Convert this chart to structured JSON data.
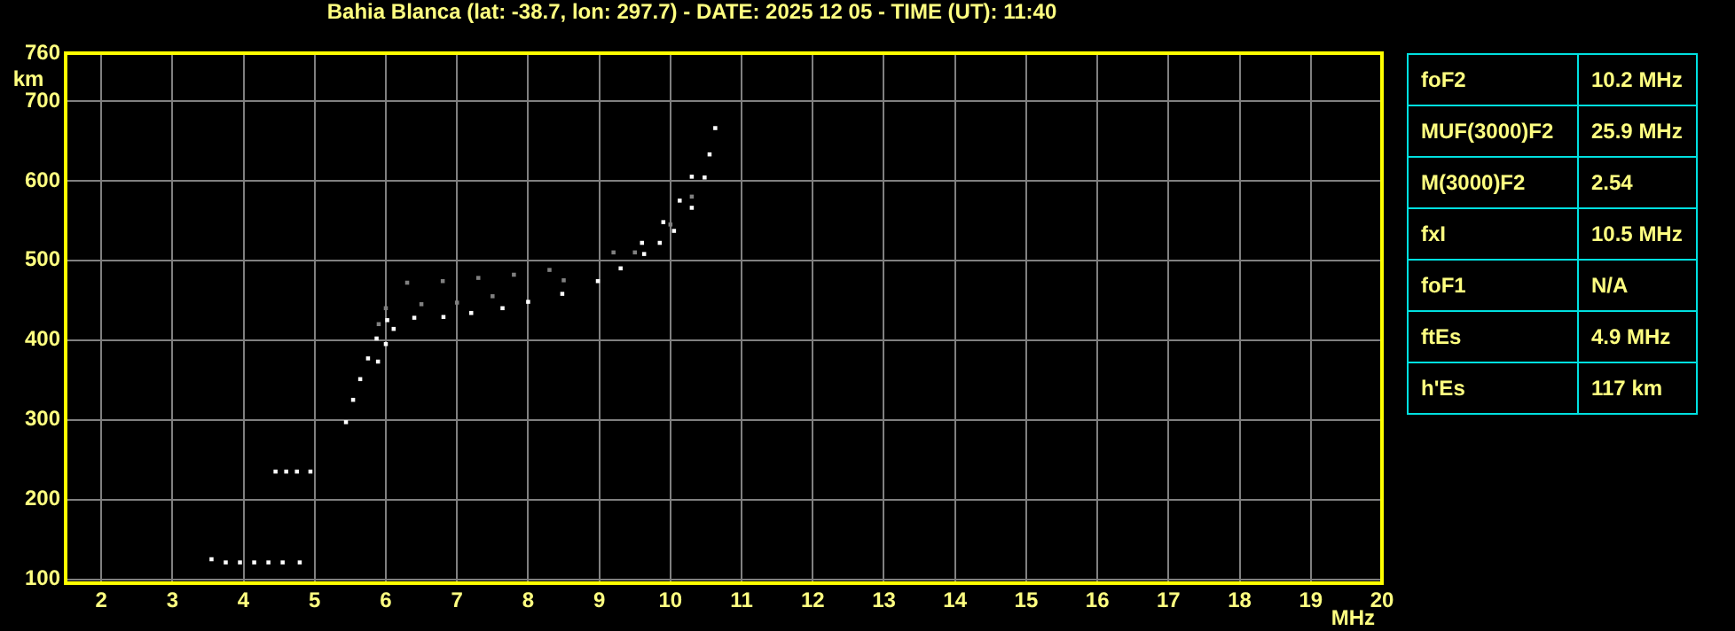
{
  "chart_data": [
    {
      "type": "scatter",
      "title": "Bahia Blanca (lat: -38.7, lon: 297.7) - DATE: 2025 12 05 - TIME (UT): 11:40",
      "xlabel": "MHz",
      "ylabel": "km",
      "xlim": [
        1.5,
        20
      ],
      "ylim": [
        95,
        760
      ],
      "xticks": [
        2,
        3,
        4,
        5,
        6,
        7,
        8,
        9,
        10,
        11,
        12,
        13,
        14,
        15,
        16,
        17,
        18,
        19,
        20
      ],
      "yticks": [
        100,
        200,
        300,
        400,
        500,
        600,
        700,
        760
      ],
      "grid": true,
      "legend": false,
      "marker": "square",
      "series": [
        {
          "color": "#808080",
          "x": [
            5.9,
            6.0,
            6.5,
            7.0,
            7.5,
            8.5,
            9.5,
            10.0,
            10.3,
            6.3,
            6.8,
            7.3,
            7.8,
            8.3,
            9.2
          ],
          "values": [
            420,
            440,
            445,
            447,
            455,
            475,
            510,
            545,
            580,
            472,
            474,
            478,
            482,
            488,
            510
          ]
        },
        {
          "color": "#ffffff",
          "x": [
            5.44,
            5.54,
            5.64,
            5.75,
            5.87,
            6.02,
            6.4,
            6.81,
            7.2,
            7.64,
            8.0,
            8.48,
            8.98,
            9.3,
            9.63,
            9.85,
            10.05,
            10.3,
            10.48,
            10.55,
            10.63
          ],
          "values": [
            297,
            325,
            351,
            377,
            402,
            425,
            428,
            429,
            434,
            440,
            448,
            458,
            474,
            490,
            508,
            522,
            537,
            566,
            604,
            633,
            666
          ]
        },
        {
          "color": "#ffffff",
          "x": [
            5.89,
            6.0,
            6.11,
            9.6,
            9.9,
            10.13,
            10.3
          ],
          "values": [
            373,
            395,
            414,
            522,
            548,
            575,
            605
          ]
        },
        {
          "color": "#ffffff",
          "x": [
            3.55,
            3.75,
            3.95,
            4.15,
            4.35,
            4.55,
            4.79,
            4.45,
            4.6,
            4.75,
            4.94
          ],
          "values": [
            125,
            121,
            121,
            121,
            121,
            121,
            121,
            235,
            235,
            235,
            235
          ]
        }
      ]
    },
    {
      "type": "other",
      "annotations": [
        "foF2",
        "10.2 MHz",
        "MUF(3000)F2",
        "25.9 MHz",
        "M(3000)F2",
        "2.54",
        "fxI",
        "10.5 MHz",
        "foF1",
        "N/A",
        "ftEs",
        "4.9 MHz",
        "h'Es",
        "117 km"
      ]
    }
  ]
}
